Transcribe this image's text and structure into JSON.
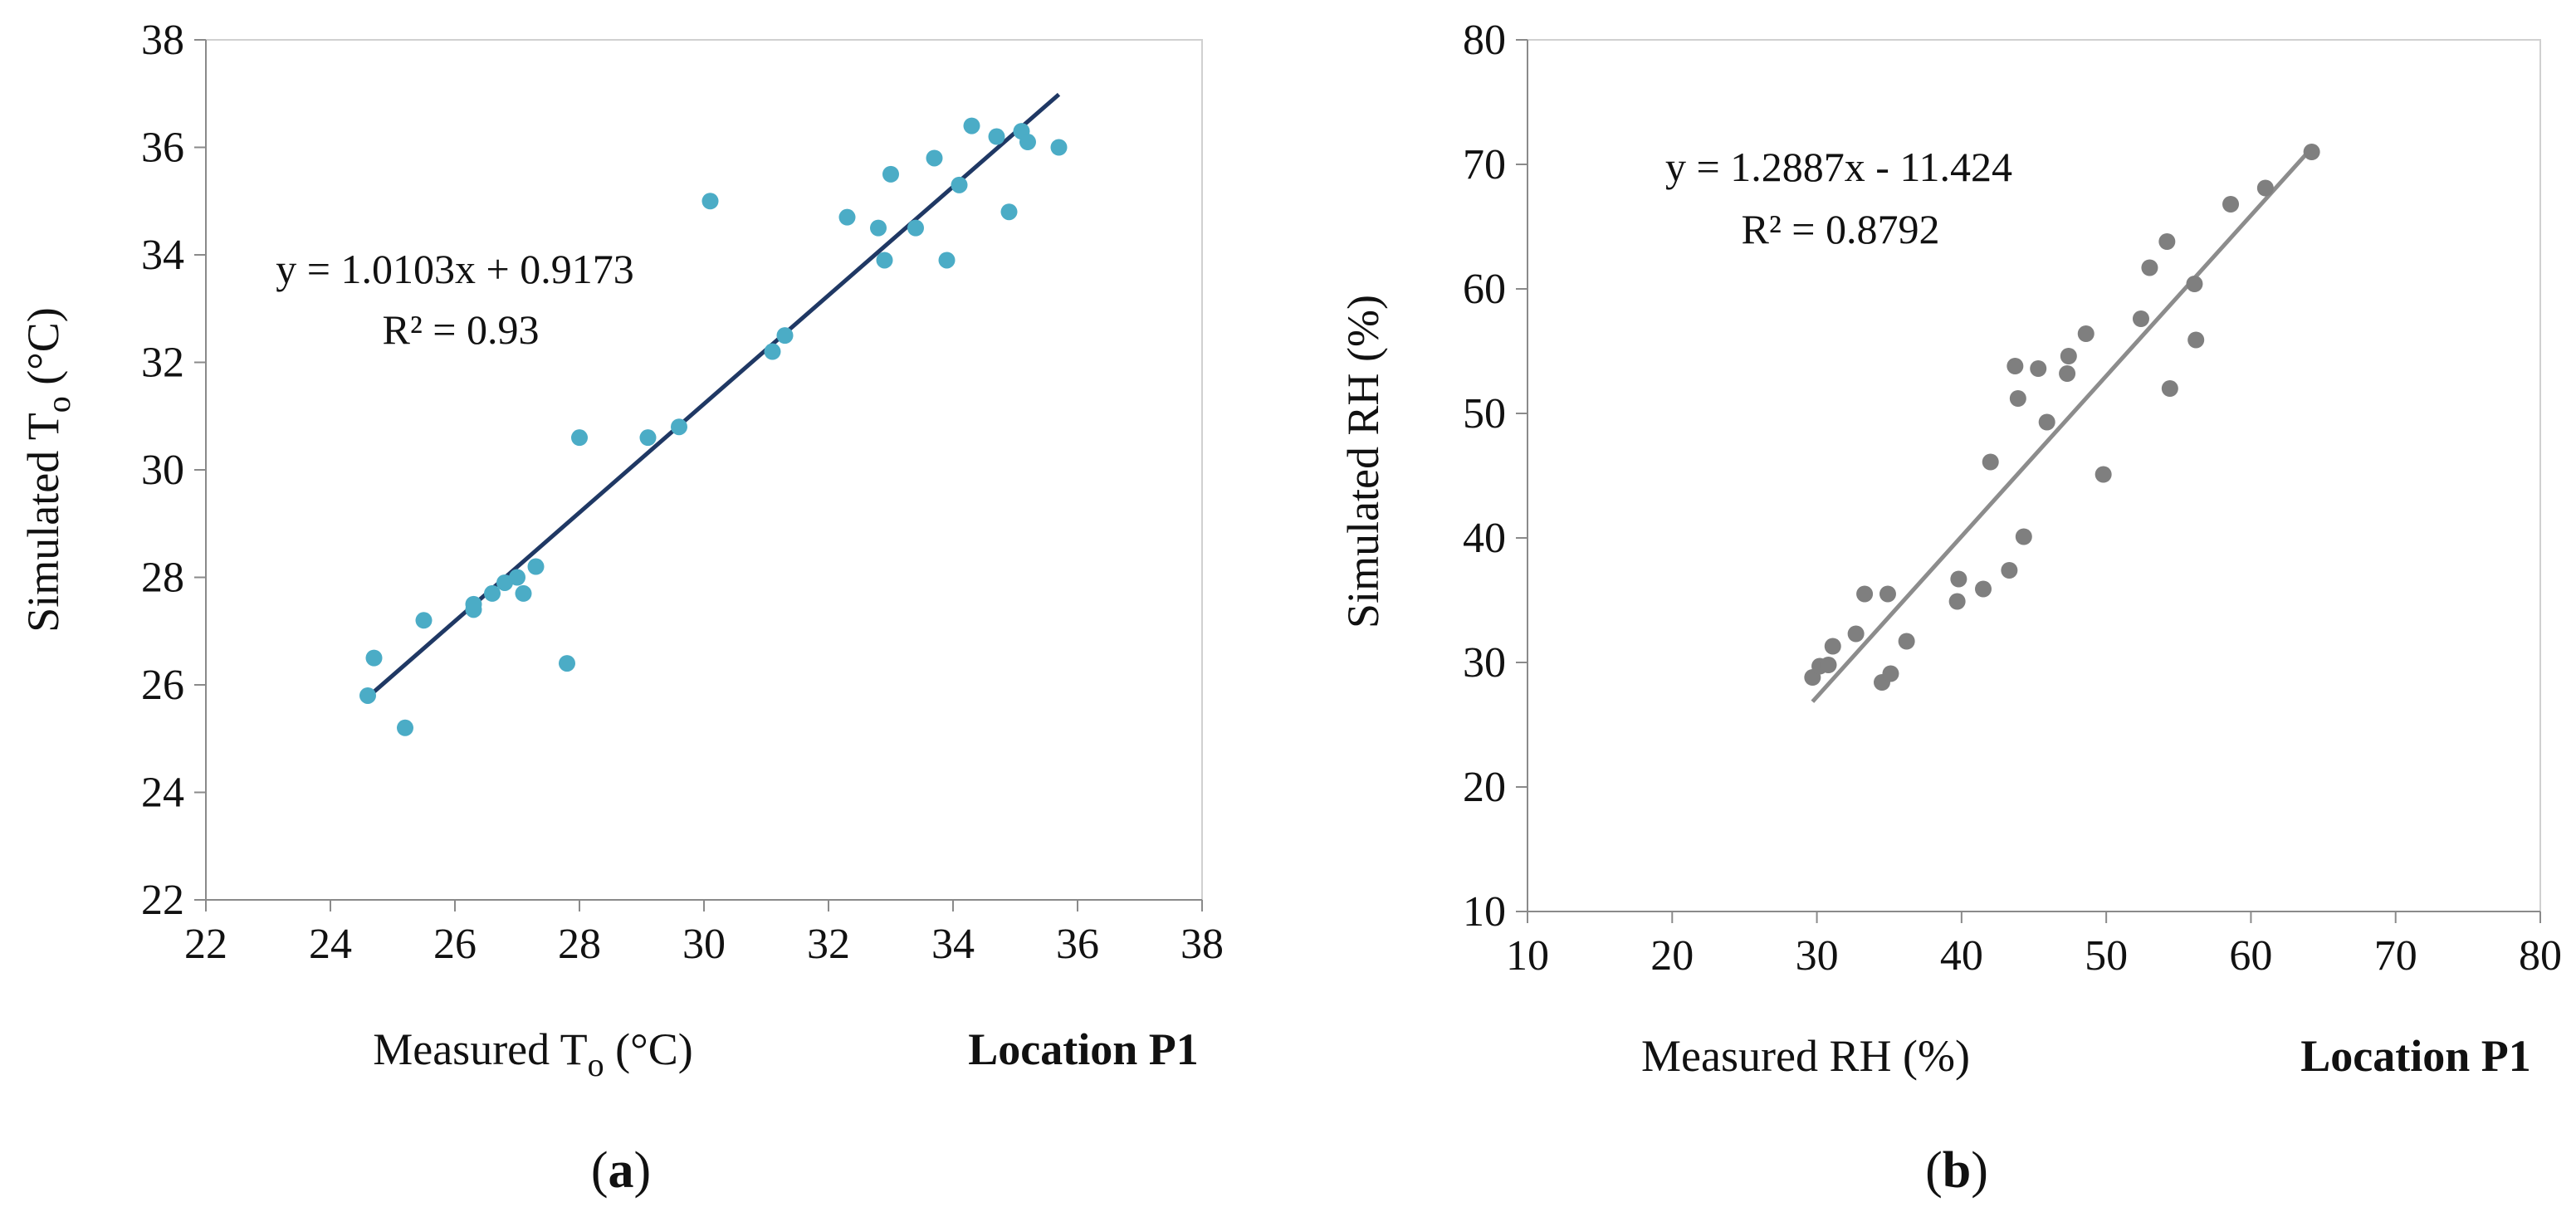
{
  "chart_data": [
    {
      "type": "scatter",
      "panel_label_letter": "a",
      "xlabel": "Measured T",
      "xlabel_sub": "o",
      "xlabel_unit": " (°C)",
      "ylabel": "Simulated T",
      "ylabel_sub": "o",
      "ylabel_unit": " (°C)",
      "location": "Location P1",
      "xlim": [
        22,
        38
      ],
      "ylim": [
        22,
        38
      ],
      "xticks": [
        22,
        24,
        26,
        28,
        30,
        32,
        34,
        36,
        38
      ],
      "yticks": [
        22,
        24,
        26,
        28,
        30,
        32,
        34,
        36,
        38
      ],
      "grid": false,
      "marker_color": "#4bacc6",
      "trend_color": "#1f3864",
      "trendline": {
        "slope": 1.0103,
        "intercept": 0.9173,
        "x_range": [
          24.7,
          35.7
        ]
      },
      "equation": "y = 1.0103x  + 0.9173",
      "r2": "R² = 0.93",
      "points": [
        [
          24.6,
          25.8
        ],
        [
          24.7,
          26.5
        ],
        [
          25.2,
          25.2
        ],
        [
          25.5,
          27.2
        ],
        [
          26.3,
          27.4
        ],
        [
          26.3,
          27.5
        ],
        [
          26.6,
          27.7
        ],
        [
          26.8,
          27.9
        ],
        [
          27.0,
          28.0
        ],
        [
          27.1,
          27.7
        ],
        [
          27.3,
          28.2
        ],
        [
          27.8,
          26.4
        ],
        [
          28.0,
          30.6
        ],
        [
          29.1,
          30.6
        ],
        [
          29.6,
          30.8
        ],
        [
          30.1,
          35.0
        ],
        [
          31.1,
          32.2
        ],
        [
          31.3,
          32.5
        ],
        [
          32.3,
          34.7
        ],
        [
          32.8,
          34.5
        ],
        [
          32.9,
          33.9
        ],
        [
          33.0,
          35.5
        ],
        [
          33.4,
          34.5
        ],
        [
          33.7,
          35.8
        ],
        [
          33.9,
          33.9
        ],
        [
          34.1,
          35.3
        ],
        [
          34.3,
          36.4
        ],
        [
          34.7,
          36.2
        ],
        [
          34.9,
          34.8
        ],
        [
          35.1,
          36.3
        ],
        [
          35.2,
          36.1
        ],
        [
          35.7,
          36.0
        ]
      ]
    },
    {
      "type": "scatter",
      "panel_label_letter": "b",
      "xlabel": "Measured RH (%)",
      "ylabel": "Simulated RH (%)",
      "location": "Location P1",
      "xlim": [
        10,
        80
      ],
      "ylim": [
        10,
        80
      ],
      "xticks": [
        10,
        20,
        30,
        40,
        50,
        60,
        70,
        80
      ],
      "yticks": [
        10,
        20,
        30,
        40,
        50,
        60,
        70,
        80
      ],
      "grid": false,
      "marker_color": "#7f7f7f",
      "trend_color": "#8c8c8c",
      "trendline": {
        "slope": 1.2887,
        "intercept": -11.424,
        "x_range": [
          29.7,
          64.2
        ]
      },
      "equation": "y = 1.2887x  - 11.424",
      "r2": "R² = 0.8792",
      "points": [
        [
          29.7,
          28.8
        ],
        [
          30.2,
          29.7
        ],
        [
          30.8,
          29.8
        ],
        [
          31.1,
          31.3
        ],
        [
          32.7,
          32.3
        ],
        [
          33.3,
          35.5
        ],
        [
          34.5,
          28.4
        ],
        [
          34.9,
          35.5
        ],
        [
          35.1,
          29.1
        ],
        [
          36.2,
          31.7
        ],
        [
          39.7,
          34.9
        ],
        [
          39.8,
          36.7
        ],
        [
          41.5,
          35.9
        ],
        [
          42.0,
          46.1
        ],
        [
          43.3,
          37.4
        ],
        [
          43.7,
          53.8
        ],
        [
          43.9,
          51.2
        ],
        [
          44.3,
          40.1
        ],
        [
          45.3,
          53.6
        ],
        [
          45.9,
          49.3
        ],
        [
          47.3,
          53.2
        ],
        [
          47.4,
          54.6
        ],
        [
          48.6,
          56.4
        ],
        [
          49.8,
          45.1
        ],
        [
          52.4,
          57.6
        ],
        [
          53.0,
          61.7
        ],
        [
          54.2,
          63.8
        ],
        [
          54.4,
          52.0
        ],
        [
          56.1,
          60.4
        ],
        [
          56.2,
          55.9
        ],
        [
          58.6,
          66.8
        ],
        [
          61.0,
          68.1
        ],
        [
          64.2,
          71.0
        ]
      ]
    }
  ]
}
